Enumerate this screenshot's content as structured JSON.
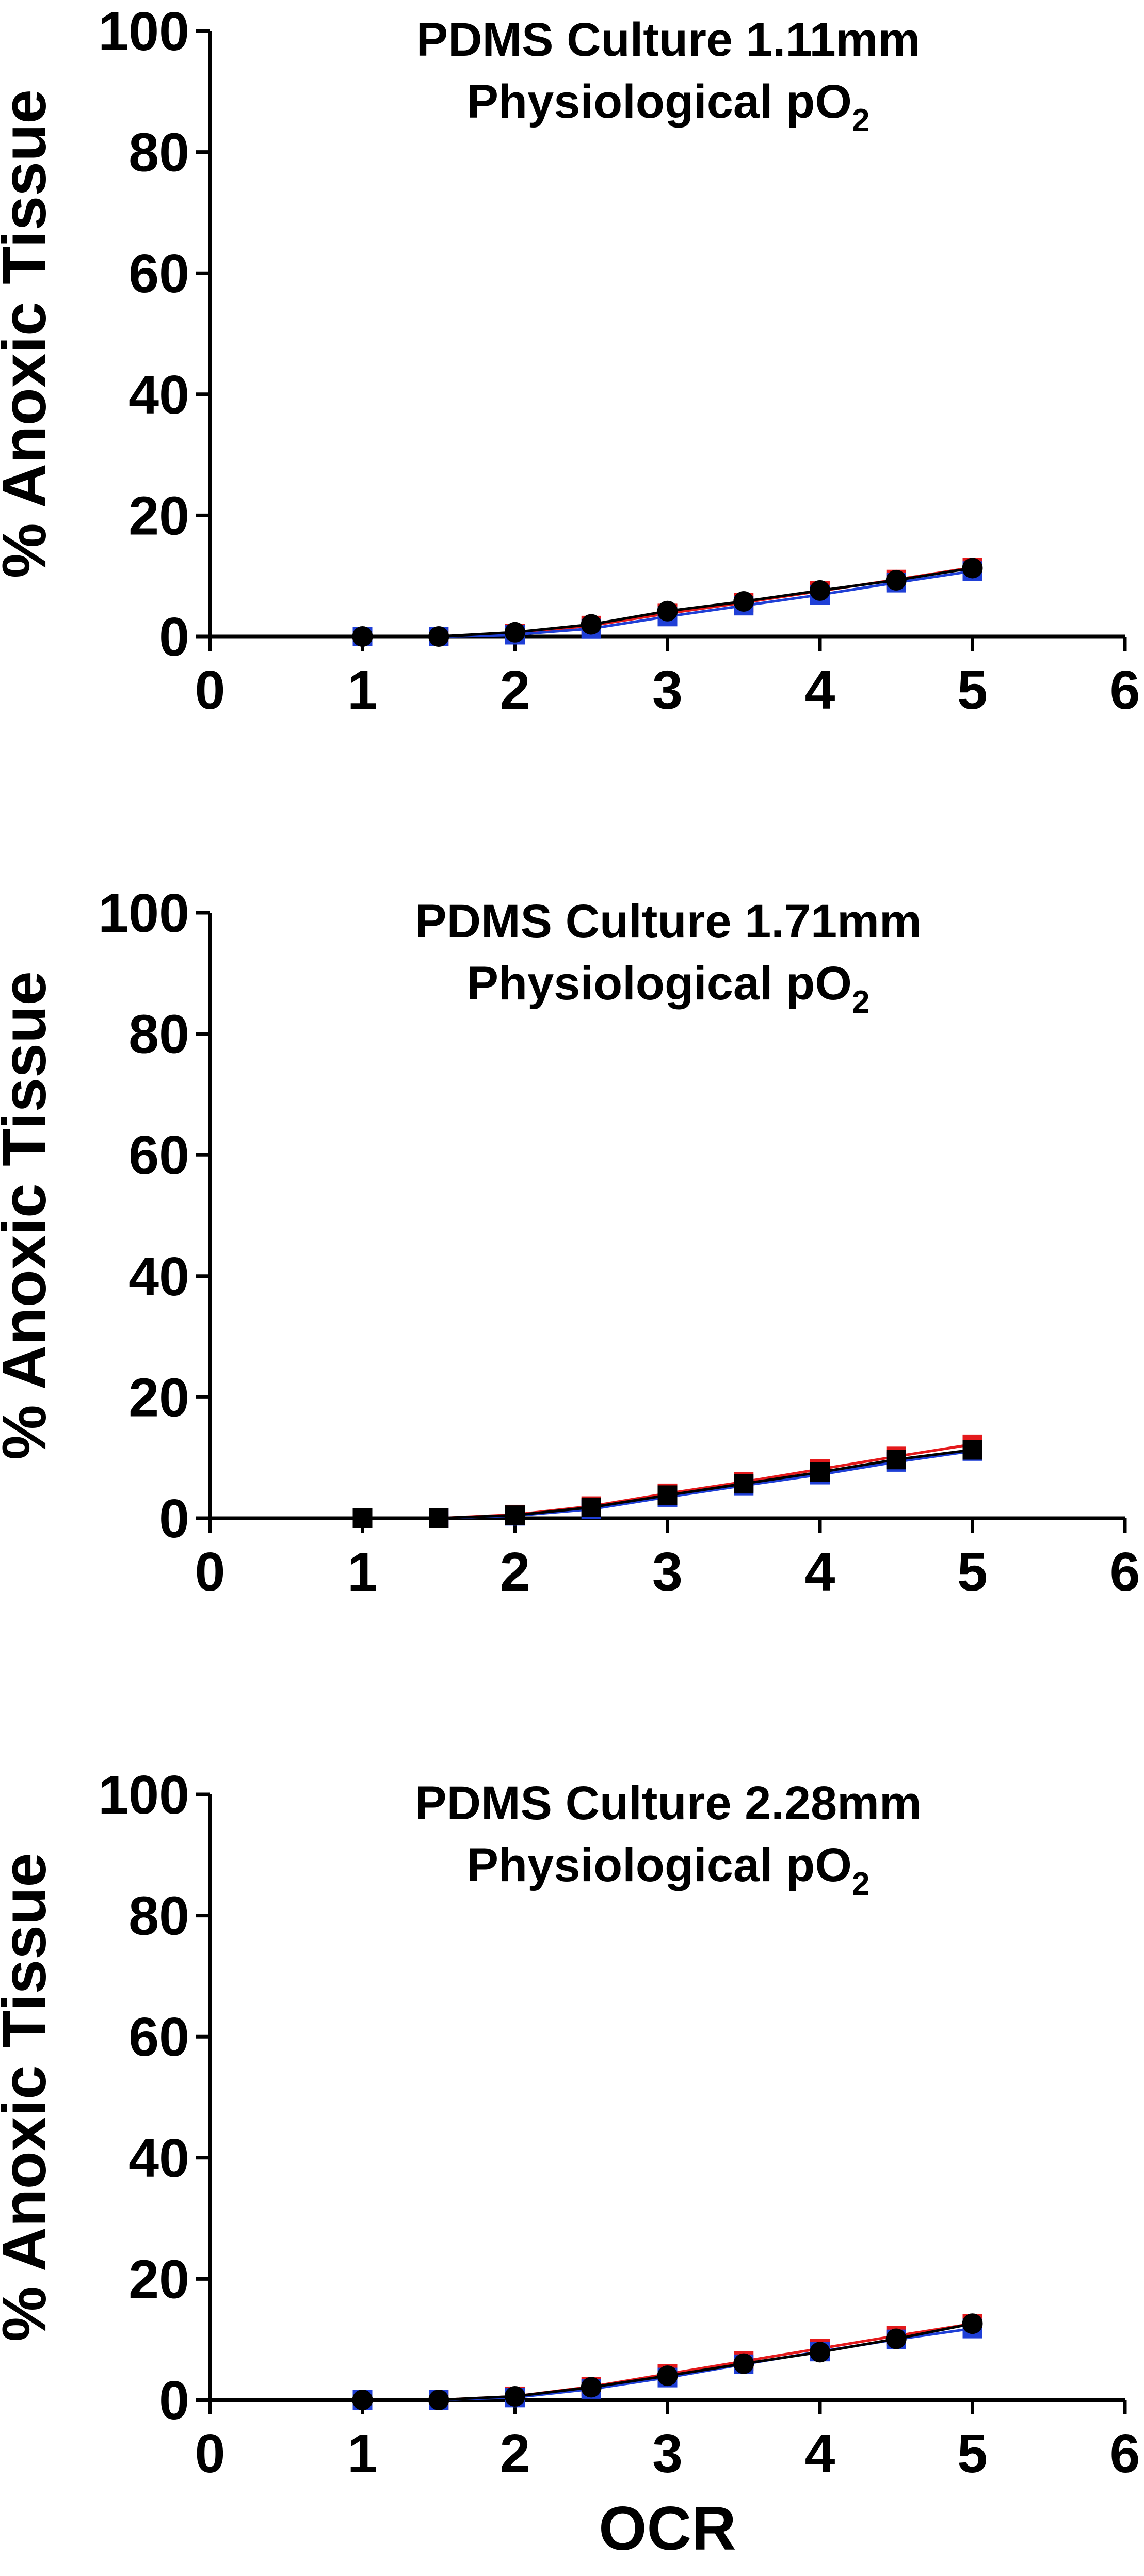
{
  "chart_data": [
    {
      "type": "line",
      "title": "PDMS Culture 1.11mm",
      "subtitle_text": "Physiological pO",
      "subtitle_sub": "2",
      "ylabel": "% Anoxic Tissue",
      "xlabel": "",
      "xlim": [
        0,
        6
      ],
      "ylim": [
        0,
        100
      ],
      "xticks": [
        "0",
        "1",
        "2",
        "3",
        "4",
        "5",
        "6"
      ],
      "yticks": [
        "0",
        "20",
        "40",
        "60",
        "80",
        "100"
      ],
      "grid": false,
      "x": [
        1,
        1.5,
        2,
        2.5,
        3,
        3.5,
        4,
        4.5,
        5
      ],
      "series": [
        {
          "color": "#e41a1c",
          "marker": "square",
          "values": [
            0,
            0,
            0.5,
            1.8,
            3.8,
            5.6,
            7.5,
            9.4,
            11.4
          ]
        },
        {
          "color": "#1f3fd6",
          "marker": "square",
          "values": [
            0,
            0,
            0.3,
            1.3,
            3.3,
            5.1,
            6.9,
            8.9,
            10.8
          ]
        },
        {
          "color": "#000000",
          "marker": "circle",
          "values": [
            0,
            0,
            0.7,
            2.0,
            4.2,
            5.8,
            7.6,
            9.3,
            11.3
          ]
        }
      ]
    },
    {
      "type": "line",
      "title": "PDMS Culture 1.71mm",
      "subtitle_text": "Physiological pO",
      "subtitle_sub": "2",
      "ylabel": "% Anoxic Tissue",
      "xlabel": "",
      "xlim": [
        0,
        6
      ],
      "ylim": [
        0,
        100
      ],
      "xticks": [
        "0",
        "1",
        "2",
        "3",
        "4",
        "5",
        "6"
      ],
      "yticks": [
        "0",
        "20",
        "40",
        "60",
        "80",
        "100"
      ],
      "grid": false,
      "x": [
        1,
        1.5,
        2,
        2.5,
        3,
        3.5,
        4,
        4.5,
        5
      ],
      "series": [
        {
          "color": "#e41a1c",
          "marker": "square",
          "values": [
            0,
            0,
            0.6,
            2.0,
            4.1,
            6.0,
            8.1,
            10.2,
            12.2
          ]
        },
        {
          "color": "#1f3fd6",
          "marker": "square",
          "values": [
            0,
            0,
            0.4,
            1.5,
            3.5,
            5.4,
            7.2,
            9.3,
            11.1
          ]
        },
        {
          "color": "#000000",
          "marker": "square",
          "values": [
            0,
            0,
            0.5,
            1.8,
            3.8,
            5.7,
            7.6,
            9.7,
            11.3
          ]
        }
      ]
    },
    {
      "type": "line",
      "title": "PDMS Culture 2.28mm",
      "subtitle_text": "Physiological pO",
      "subtitle_sub": "2",
      "ylabel": "% Anoxic Tissue",
      "xlabel": "OCR",
      "xlim": [
        0,
        6
      ],
      "ylim": [
        0,
        100
      ],
      "xticks": [
        "0",
        "1",
        "2",
        "3",
        "4",
        "5",
        "6"
      ],
      "yticks": [
        "0",
        "20",
        "40",
        "60",
        "80",
        "100"
      ],
      "grid": false,
      "x": [
        1,
        1.5,
        2,
        2.5,
        3,
        3.5,
        4,
        4.5,
        5
      ],
      "series": [
        {
          "color": "#e41a1c",
          "marker": "square",
          "values": [
            0,
            0,
            0.6,
            2.2,
            4.3,
            6.4,
            8.5,
            10.6,
            12.6
          ]
        },
        {
          "color": "#1f3fd6",
          "marker": "square",
          "values": [
            0,
            0,
            0.4,
            1.8,
            3.7,
            5.9,
            8.0,
            10.0,
            11.8
          ]
        },
        {
          "color": "#000000",
          "marker": "circle",
          "values": [
            0,
            0,
            0.6,
            2.1,
            4.0,
            6.0,
            7.9,
            10.1,
            12.6
          ]
        }
      ]
    }
  ]
}
